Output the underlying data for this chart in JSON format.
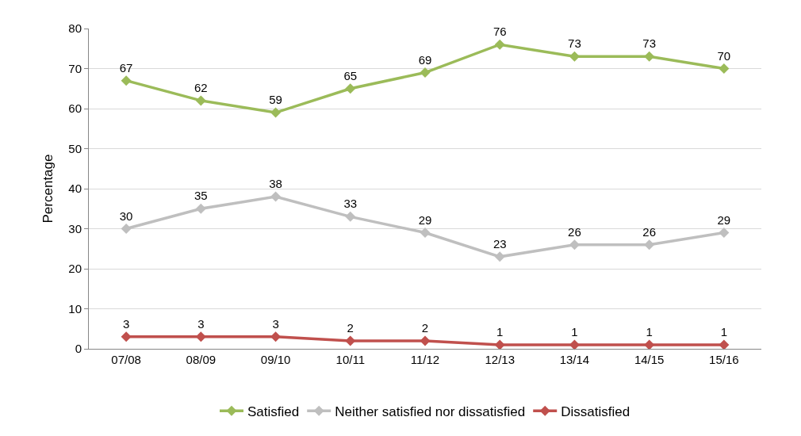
{
  "chart_data": {
    "type": "line",
    "ylabel": "Percentage",
    "categories": [
      "07/08",
      "08/09",
      "09/10",
      "10/11",
      "11/12",
      "12/13",
      "13/14",
      "14/15",
      "15/16"
    ],
    "series": [
      {
        "name": "Satisfied",
        "color": "#9bbb59",
        "values": [
          67,
          62,
          59,
          65,
          69,
          76,
          73,
          73,
          70
        ]
      },
      {
        "name": "Neither satisfied nor dissatisfied",
        "color": "#bfbfbf",
        "values": [
          30,
          35,
          38,
          33,
          29,
          23,
          26,
          26,
          29
        ]
      },
      {
        "name": "Dissatisfied",
        "color": "#c0504d",
        "values": [
          3,
          3,
          3,
          2,
          2,
          1,
          1,
          1,
          1
        ]
      }
    ],
    "ylim": [
      0,
      80
    ],
    "yticks": [
      0,
      10,
      20,
      30,
      40,
      50,
      60,
      70,
      80
    ],
    "grid": "y",
    "legend": "bottom",
    "marker": "diamond",
    "line_style": "solid",
    "data_labels": true
  }
}
